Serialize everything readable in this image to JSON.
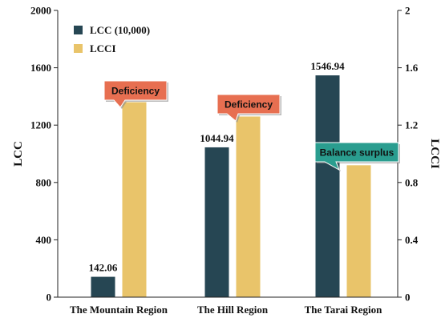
{
  "chart_data": {
    "type": "bar",
    "categories": [
      "The Mountain Region",
      "The Hill Region",
      "The Tarai Region"
    ],
    "ylabel": "LCC",
    "y2label": "LCCI",
    "ylim": [
      0,
      2000
    ],
    "y2lim": [
      0,
      2
    ],
    "yticks": [
      "0",
      "400",
      "800",
      "1200",
      "1600",
      "2000"
    ],
    "y2ticks": [
      "0",
      "0.4",
      "0.8",
      "1.2",
      "1.6",
      "2"
    ],
    "grid": false,
    "legend_position": "top-left",
    "series": [
      {
        "name": "LCC (10,000)",
        "axis": "left",
        "color": "#264653",
        "values": [
          142.06,
          1044.94,
          1546.94
        ],
        "labels": [
          "142.06",
          "1044.94",
          "1546.94"
        ]
      },
      {
        "name": "LCCI",
        "axis": "right",
        "color": "#E9C46A",
        "values": [
          1.36,
          1.26,
          0.92
        ]
      }
    ],
    "annotations": [
      {
        "text": "Deficiency",
        "category_index": 0,
        "color": "#E76F51"
      },
      {
        "text": "Deficiency",
        "category_index": 1,
        "color": "#E76F51"
      },
      {
        "text": "Balance surplus",
        "category_index": 2,
        "color": "#2A9D8F"
      }
    ]
  }
}
